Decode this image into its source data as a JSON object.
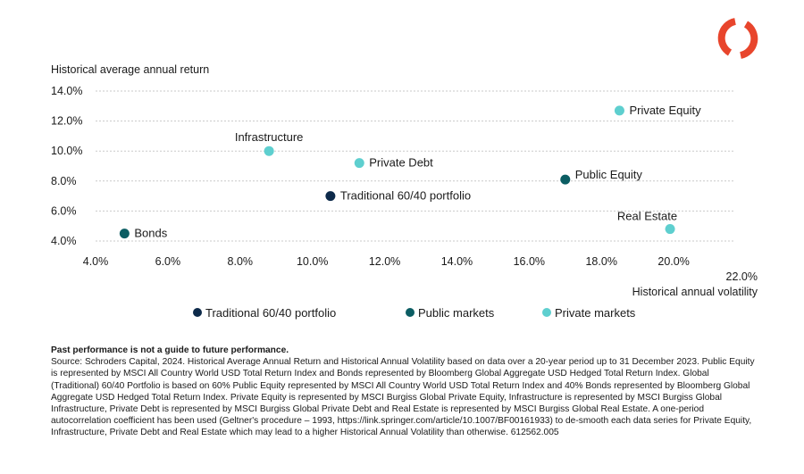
{
  "chart_data": {
    "type": "scatter",
    "title": "",
    "ylabel": "Historical average annual return",
    "xlabel": "Historical annual volatility",
    "xlim": [
      4.0,
      22.0
    ],
    "ylim": [
      4.0,
      14.0
    ],
    "x_ticks": [
      "4.0%",
      "6.0%",
      "8.0%",
      "10.0%",
      "12.0%",
      "14.0%",
      "16.0%",
      "18.0%",
      "20.0%",
      "22.0%"
    ],
    "y_ticks": [
      "4.0%",
      "6.0%",
      "8.0%",
      "10.0%",
      "12.0%",
      "14.0%"
    ],
    "grid": "horizontal",
    "legend_position": "bottom",
    "series": [
      {
        "name": "Traditional 60/40 portfolio",
        "color": "#0d2a4a",
        "points": [
          {
            "label": "Traditional 60/40 portfolio",
            "x": 10.5,
            "y": 7.0
          }
        ]
      },
      {
        "name": "Public markets",
        "color": "#0b5d63",
        "points": [
          {
            "label": "Bonds",
            "x": 4.8,
            "y": 4.5
          },
          {
            "label": "Public Equity",
            "x": 17.0,
            "y": 8.1
          }
        ]
      },
      {
        "name": "Private markets",
        "color": "#5ecfcf",
        "points": [
          {
            "label": "Private Equity",
            "x": 18.5,
            "y": 12.7
          },
          {
            "label": "Infrastructure",
            "x": 8.8,
            "y": 10.0
          },
          {
            "label": "Private Debt",
            "x": 11.3,
            "y": 9.2
          },
          {
            "label": "Real Estate",
            "x": 19.9,
            "y": 4.8
          }
        ]
      }
    ]
  },
  "notes": {
    "heading": "Past performance is not a guide to future performance.",
    "body": "Source: Schroders Capital, 2024. Historical Average Annual Return and Historical Annual Volatility based on data over a 20-year period up to 31 December 2023. Public Equity is represented by MSCI All Country World USD Total Return Index and Bonds represented by Bloomberg Global Aggregate USD Hedged Total Return Index. Global (Traditional) 60/40 Portfolio is based on 60% Public Equity represented by MSCI All Country World USD Total Return Index and 40% Bonds represented by Bloomberg Global Aggregate USD Hedged Total Return Index. Private Equity is represented by MSCI Burgiss Global Private Equity, Infrastructure is represented by MSCI Burgiss Global Infrastructure, Private Debt is represented by MSCI Burgiss Global Private Debt and Real Estate is represented by MSCI Burgiss Global Real Estate. A one-period autocorrelation coefficient has been used (Geltner's procedure – 1993, https://link.springer.com/article/10.1007/BF00161933) to de-smooth each data series for Private Equity, Infrastructure, Private Debt and Real Estate which may lead to a higher Historical Annual Volatility than otherwise. 612562.005"
  },
  "logo": {
    "icon": "schroders-ring-logo-icon",
    "color": "#e8452c"
  }
}
